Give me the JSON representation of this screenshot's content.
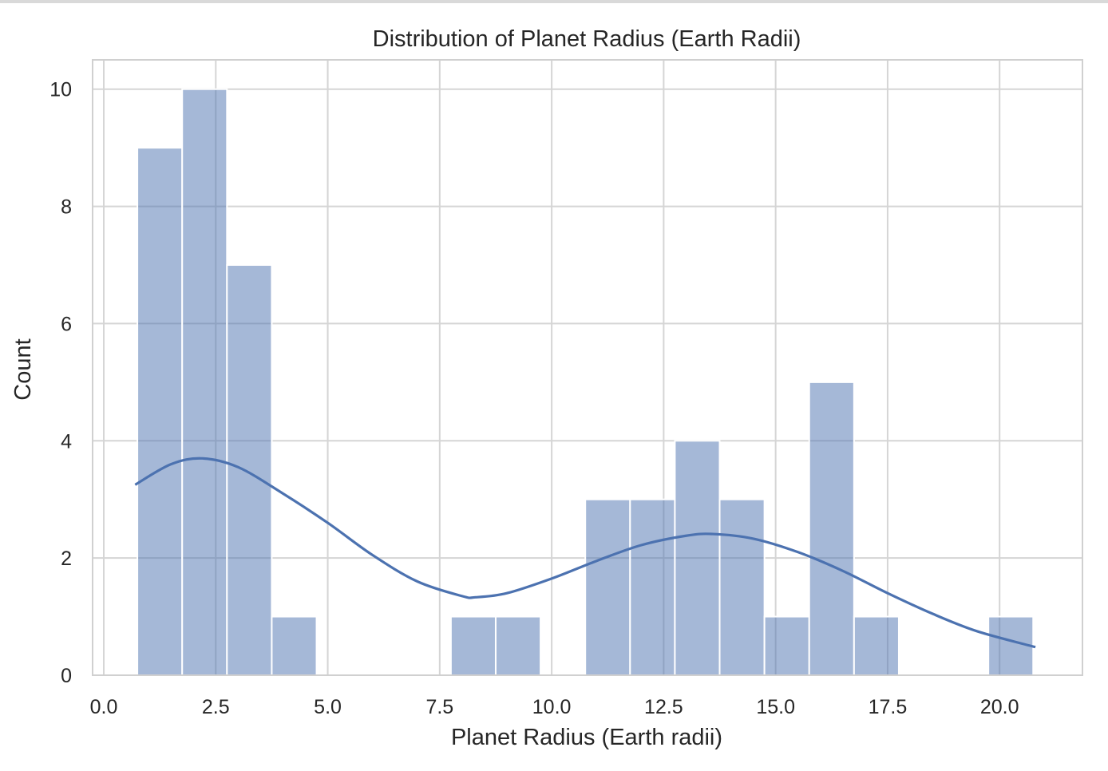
{
  "chart_data": {
    "type": "bar",
    "subtype": "histogram",
    "title": "Distribution of Planet Radius (Earth Radii)",
    "xlabel": "Planet Radius (Earth radii)",
    "ylabel": "Count",
    "xlim": [
      -0.25,
      21.85
    ],
    "ylim": [
      0,
      10.5
    ],
    "xticks": [
      0.0,
      2.5,
      5.0,
      7.5,
      10.0,
      12.5,
      15.0,
      17.5,
      20.0
    ],
    "xtick_labels": [
      "0.0",
      "2.5",
      "5.0",
      "7.5",
      "10.0",
      "12.5",
      "15.0",
      "17.5",
      "20.0"
    ],
    "yticks": [
      0,
      2,
      4,
      6,
      8,
      10
    ],
    "ytick_labels": [
      "0",
      "2",
      "4",
      "6",
      "8",
      "10"
    ],
    "bin_edges": [
      0.75,
      1.75,
      2.75,
      3.75,
      4.75,
      5.75,
      6.75,
      7.75,
      8.75,
      9.75,
      10.75,
      11.75,
      12.75,
      13.75,
      14.75,
      15.75,
      16.75,
      17.75,
      18.75,
      19.75,
      20.75
    ],
    "values": [
      9,
      10,
      7,
      1,
      0,
      0,
      0,
      1,
      1,
      0,
      3,
      3,
      4,
      3,
      1,
      5,
      1,
      0,
      0,
      1
    ],
    "kde": {
      "x": [
        0.7,
        1.5,
        2.2,
        3.0,
        4.0,
        5.0,
        6.0,
        7.0,
        8.0,
        8.3,
        9.0,
        10.0,
        11.0,
        12.0,
        13.0,
        13.6,
        14.5,
        15.5,
        16.5,
        17.5,
        18.5,
        19.5,
        20.8
      ],
      "y": [
        3.25,
        3.6,
        3.7,
        3.55,
        3.1,
        2.6,
        2.05,
        1.6,
        1.35,
        1.33,
        1.4,
        1.65,
        1.95,
        2.22,
        2.38,
        2.41,
        2.33,
        2.1,
        1.78,
        1.4,
        1.05,
        0.75,
        0.48
      ]
    },
    "grid": true,
    "colors": {
      "bar": "#4c72b0",
      "bar_opacity": 0.5,
      "kde_line": "#4c72b0",
      "grid": "#d5d5d5",
      "spine": "#d0d0d0"
    }
  }
}
